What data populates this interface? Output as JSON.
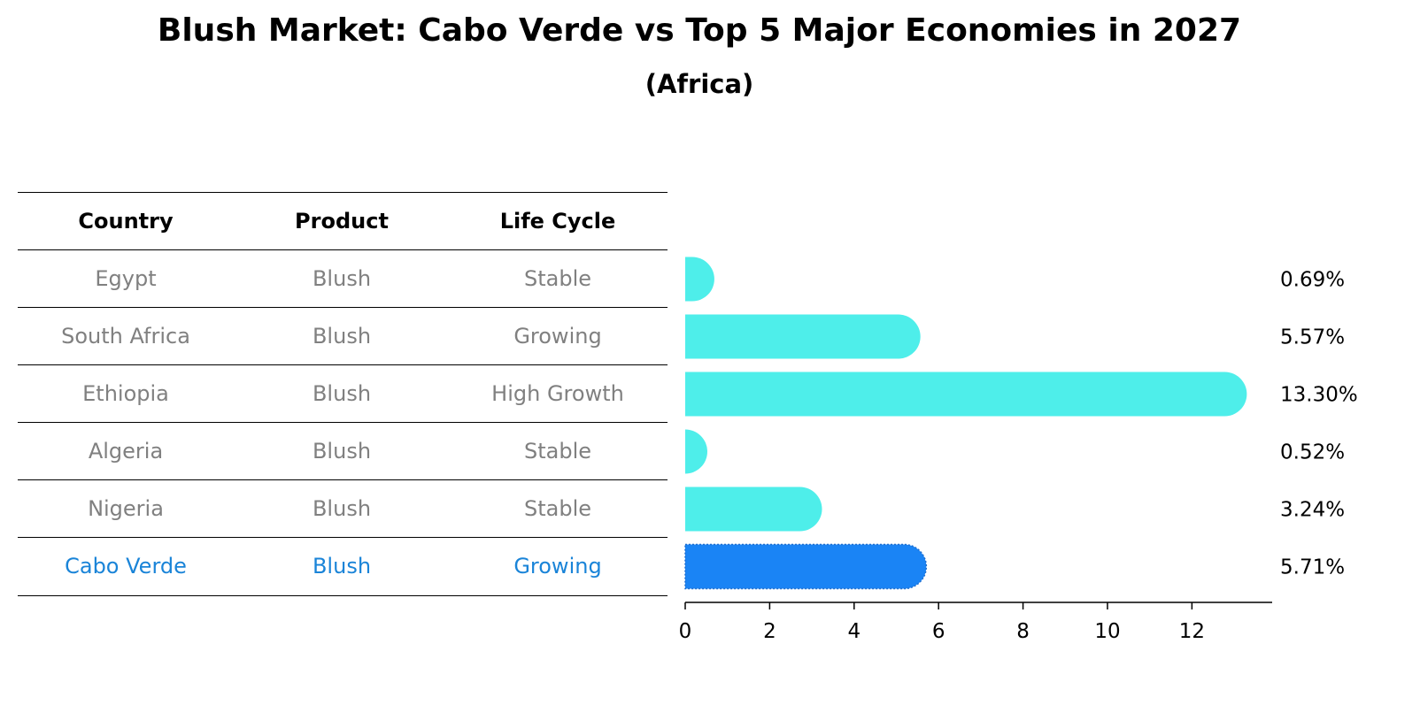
{
  "title": "Blush Market: Cabo Verde vs Top 5 Major Economies in 2027",
  "subtitle": "(Africa)",
  "table": {
    "headers": [
      "Country",
      "Product",
      "Life Cycle"
    ],
    "rows": [
      {
        "country": "Egypt",
        "product": "Blush",
        "life_cycle": "Stable"
      },
      {
        "country": "South Africa",
        "product": "Blush",
        "life_cycle": "Growing"
      },
      {
        "country": "Ethiopia",
        "product": "Blush",
        "life_cycle": "High Growth"
      },
      {
        "country": "Algeria",
        "product": "Blush",
        "life_cycle": "Stable"
      },
      {
        "country": "Nigeria",
        "product": "Blush",
        "life_cycle": "Stable"
      },
      {
        "country": "Cabo Verde",
        "product": "Blush",
        "life_cycle": "Growing"
      }
    ]
  },
  "colors": {
    "bar": "#4eeeea",
    "highlight": "#1a84f5",
    "highlight_text": "#1a84d8",
    "muted_text": "#808080"
  },
  "chart_data": {
    "type": "bar",
    "orientation": "horizontal",
    "categories": [
      "Egypt",
      "South Africa",
      "Ethiopia",
      "Algeria",
      "Nigeria",
      "Cabo Verde"
    ],
    "values": [
      0.69,
      5.57,
      13.3,
      0.52,
      3.24,
      5.71
    ],
    "value_labels": [
      "0.69%",
      "5.57%",
      "13.30%",
      "0.52%",
      "3.24%",
      "5.71%"
    ],
    "highlight": "Cabo Verde",
    "xlim": [
      0,
      13.9
    ],
    "xticks": [
      0,
      2,
      4,
      6,
      8,
      10,
      12
    ],
    "xlabel": "",
    "ylabel": "",
    "grid": false
  }
}
